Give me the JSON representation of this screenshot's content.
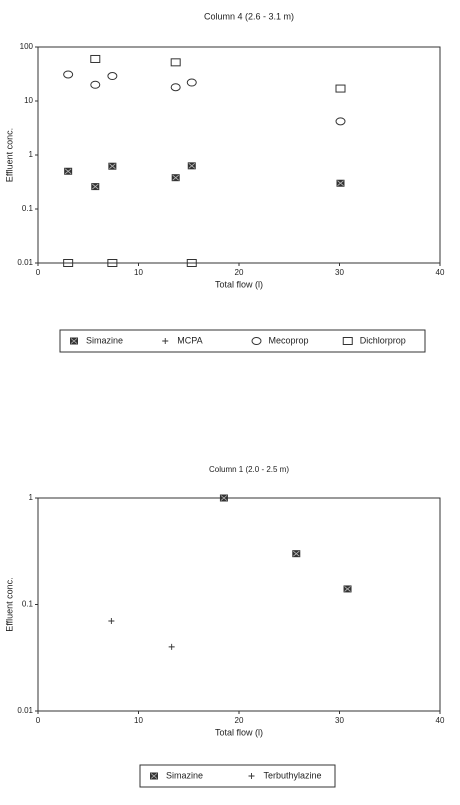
{
  "chart_data": [
    {
      "type": "scatter",
      "title": "Column 4 (2.6 - 3.1 m)",
      "x_label": "Total flow (l)",
      "y_label": "Effluent conc.",
      "xlim": [
        0,
        40
      ],
      "xticks": [
        0,
        10,
        20,
        30,
        40
      ],
      "ylim": [
        0.01,
        100
      ],
      "yticks": [
        0.01,
        0.1,
        1,
        10,
        100
      ],
      "y_scale": "log",
      "grid": false,
      "series": [
        {
          "name": "Simazine",
          "color": "#333333",
          "marker": "square-x",
          "x": [
            3,
            5.7,
            7.4,
            13.7,
            15.3,
            30.1
          ],
          "values": [
            0.5,
            0.26,
            0.62,
            0.38,
            0.63,
            0.3
          ]
        },
        {
          "name": "MCPA",
          "color": "#333333",
          "marker": "plus",
          "x": [],
          "values": []
        },
        {
          "name": "Mecoprop",
          "color": "#333333",
          "marker": "circle",
          "x": [
            3,
            5.7,
            7.4,
            13.7,
            15.3,
            30.1
          ],
          "values": [
            31,
            20,
            29,
            18,
            22,
            4.2
          ]
        },
        {
          "name": "Dichlorprop",
          "color": "#333333",
          "marker": "square",
          "x": [
            3,
            5.7,
            7.4,
            13.7,
            15.3,
            30.1
          ],
          "values": [
            0.01,
            60,
            0.01,
            52,
            0.01,
            17
          ]
        }
      ]
    },
    {
      "type": "scatter",
      "title": "Column 1 (2.0 - 2.5 m)",
      "x_label": "Total flow (l)",
      "y_label": "Effluent conc.",
      "xlim": [
        0,
        40
      ],
      "xticks": [
        0,
        10,
        20,
        30,
        40
      ],
      "ylim": [
        0.01,
        1
      ],
      "yticks": [
        0.01,
        0.1,
        1
      ],
      "y_scale": "log",
      "grid": false,
      "series": [
        {
          "name": "Simazine",
          "color": "#333333",
          "marker": "square-x",
          "x": [
            18.5,
            25.7,
            30.8
          ],
          "values": [
            1,
            0.3,
            0.14
          ]
        },
        {
          "name": "Terbuthylazine",
          "color": "#333333",
          "marker": "plus",
          "x": [
            7.3,
            13.3
          ],
          "values": [
            0.07,
            0.04
          ]
        }
      ]
    }
  ]
}
